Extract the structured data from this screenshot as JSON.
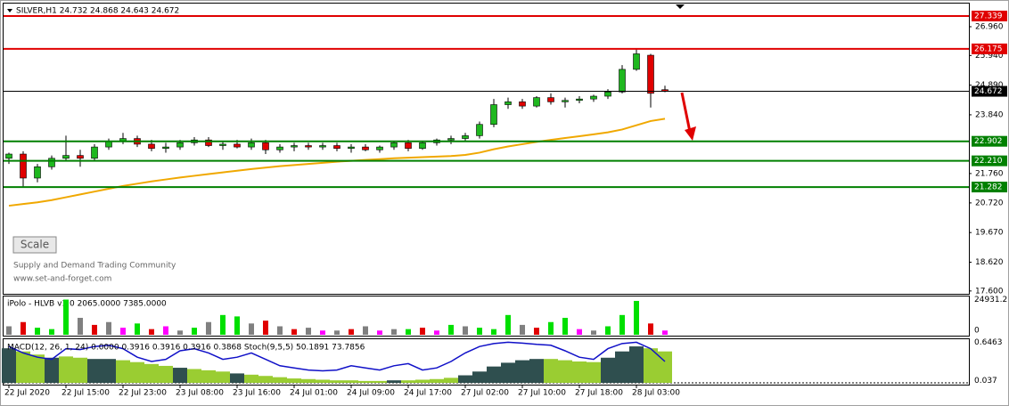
{
  "chart_data": {
    "type": "candlestick",
    "title": "SILVER,H1  24.732 24.868 24.643 24.672",
    "x": [
      "22 Jul 2020",
      null,
      null,
      null,
      "22 Jul 15:00",
      null,
      null,
      null,
      "22 Jul 23:00",
      null,
      null,
      null,
      "23 Jul 08:00",
      null,
      null,
      null,
      "23 Jul 16:00",
      null,
      null,
      null,
      "24 Jul 01:00",
      null,
      null,
      null,
      "24 Jul 09:00",
      null,
      null,
      null,
      "24 Jul 17:00",
      null,
      null,
      null,
      "27 Jul 02:00",
      null,
      null,
      null,
      "27 Jul 10:00",
      null,
      null,
      null,
      "27 Jul 18:00",
      null,
      null,
      null,
      "28 Jul 03:00",
      null,
      null
    ],
    "open": [
      22.3,
      22.45,
      21.6,
      22.0,
      22.3,
      22.4,
      22.3,
      22.7,
      22.9,
      23.0,
      22.8,
      22.65,
      22.7,
      22.85,
      22.95,
      22.75,
      22.8,
      22.7,
      22.85,
      22.6,
      22.7,
      22.75,
      22.7,
      22.75,
      22.65,
      22.7,
      22.6,
      22.7,
      22.85,
      22.65,
      22.85,
      22.95,
      23.0,
      23.1,
      23.5,
      24.2,
      24.3,
      24.15,
      24.45,
      24.3,
      24.35,
      24.4,
      24.5,
      24.65,
      25.45,
      25.95,
      24.73
    ],
    "high": [
      22.5,
      22.55,
      22.1,
      22.4,
      23.1,
      22.6,
      22.8,
      23.0,
      23.2,
      23.1,
      22.95,
      22.85,
      22.95,
      23.05,
      23.05,
      22.9,
      22.95,
      23.0,
      22.95,
      22.8,
      22.85,
      22.85,
      22.85,
      22.85,
      22.8,
      22.8,
      22.75,
      22.9,
      22.95,
      22.9,
      23.0,
      23.1,
      23.2,
      23.6,
      24.4,
      24.45,
      24.4,
      24.5,
      24.6,
      24.45,
      24.5,
      24.55,
      24.75,
      25.6,
      26.17,
      26.0,
      24.87
    ],
    "low": [
      22.1,
      21.3,
      21.45,
      21.9,
      22.2,
      22.0,
      22.2,
      22.6,
      22.8,
      22.7,
      22.55,
      22.5,
      22.6,
      22.75,
      22.7,
      22.6,
      22.65,
      22.6,
      22.45,
      22.5,
      22.55,
      22.6,
      22.6,
      22.55,
      22.5,
      22.55,
      22.5,
      22.6,
      22.55,
      22.6,
      22.75,
      22.8,
      22.9,
      23.0,
      23.4,
      24.05,
      24.05,
      24.1,
      24.2,
      24.1,
      24.25,
      24.3,
      24.4,
      24.6,
      25.4,
      24.1,
      24.64
    ],
    "close": [
      22.45,
      21.6,
      22.0,
      22.3,
      22.4,
      22.3,
      22.7,
      22.9,
      23.0,
      22.8,
      22.65,
      22.7,
      22.85,
      22.95,
      22.75,
      22.8,
      22.7,
      22.85,
      22.6,
      22.7,
      22.75,
      22.7,
      22.75,
      22.65,
      22.7,
      22.6,
      22.7,
      22.85,
      22.65,
      22.85,
      22.95,
      23.0,
      23.1,
      23.5,
      24.2,
      24.3,
      24.15,
      24.45,
      24.3,
      24.35,
      24.4,
      24.5,
      24.65,
      25.45,
      26.0,
      24.6,
      24.672
    ],
    "up_color": "#1fb81f",
    "down_color": "#e00000",
    "ma": {
      "color": "#f0a800",
      "values": [
        20.62,
        20.68,
        20.74,
        20.82,
        20.92,
        21.02,
        21.12,
        21.22,
        21.32,
        21.4,
        21.48,
        21.55,
        21.62,
        21.68,
        21.74,
        21.8,
        21.86,
        21.92,
        21.97,
        22.02,
        22.06,
        22.1,
        22.14,
        22.18,
        22.21,
        22.24,
        22.27,
        22.3,
        22.32,
        22.34,
        22.36,
        22.38,
        22.42,
        22.5,
        22.62,
        22.72,
        22.8,
        22.88,
        22.95,
        23.02,
        23.08,
        23.15,
        23.22,
        23.32,
        23.47,
        23.62,
        23.7
      ]
    },
    "ylim": [
      17.5,
      27.78
    ],
    "yticks": [
      {
        "value": 26.96,
        "label": "26.960"
      },
      {
        "value": 25.94,
        "label": "25.940"
      },
      {
        "value": 24.89,
        "label": "24.890"
      },
      {
        "value": 23.84,
        "label": "23.840"
      },
      {
        "value": 21.76,
        "label": "21.760"
      },
      {
        "value": 20.72,
        "label": "20.720"
      },
      {
        "value": 19.67,
        "label": "19.670"
      },
      {
        "value": 18.62,
        "label": "18.620"
      },
      {
        "value": 17.6,
        "label": "17.600"
      }
    ],
    "levels": [
      {
        "value": 27.339,
        "label": "27.339",
        "color": "#e00000"
      },
      {
        "value": 26.175,
        "label": "26.175",
        "color": "#e00000"
      },
      {
        "value": 24.672,
        "label": "24.672",
        "color": "#000000"
      },
      {
        "value": 22.902,
        "label": "22.902",
        "color": "#008000"
      },
      {
        "value": 22.21,
        "label": "22.210",
        "color": "#008000"
      },
      {
        "value": 21.282,
        "label": "21.282",
        "color": "#008000"
      }
    ],
    "button": "Scale",
    "annotations": [
      "Supply and Demand Trading Community",
      "www.set-and-forget.com"
    ],
    "volume": {
      "title": "iPolo - HLVB v1.0 2065.0000 7385.0000",
      "ylim": [
        0,
        26500
      ],
      "yticks": [
        24931.2,
        0
      ],
      "values": [
        6000,
        9000,
        5000,
        4000,
        24931.2,
        12000,
        7000,
        9000,
        5000,
        8000,
        4000,
        6000,
        3000,
        5000,
        9000,
        14000,
        13000,
        8000,
        10000,
        6000,
        4000,
        5000,
        3000,
        3000,
        4000,
        6000,
        3000,
        4000,
        4000,
        5000,
        3000,
        7000,
        6000,
        5000,
        4000,
        14000,
        7000,
        5000,
        9000,
        12000,
        4000,
        3000,
        6000,
        14000,
        24000,
        8000,
        3000
      ],
      "colors": [
        "#808080",
        "#e00000",
        "#00e000",
        "#00e000",
        "#00e000",
        "#808080",
        "#e00000",
        "#808080",
        "#ff00ff",
        "#00e000",
        "#e00000",
        "#ff00ff",
        "#808080",
        "#00e000",
        "#808080",
        "#00e000",
        "#00e000",
        "#808080",
        "#e00000",
        "#808080",
        "#e00000",
        "#808080",
        "#ff00ff",
        "#808080",
        "#e00000",
        "#808080",
        "#ff00ff",
        "#808080",
        "#00e000",
        "#e00000",
        "#ff00ff",
        "#00e000",
        "#808080",
        "#00e000",
        "#00e000",
        "#00e000",
        "#808080",
        "#e00000",
        "#00e000",
        "#00e000",
        "#ff00ff",
        "#808080",
        "#00e000",
        "#00e000",
        "#00e000",
        "#e00000",
        "#ff00ff"
      ]
    },
    "macd": {
      "title": "MACD(12, 26, 1, 24) 0.0000 0.3916 0.3916 0.3916 0.3868  Stoch(9,5,5) 50.1891 73.7856",
      "ylim": [
        0,
        0.68
      ],
      "yticks": [
        0.6463,
        0.037
      ],
      "values": [
        0.55,
        0.5,
        0.45,
        0.4,
        0.42,
        0.4,
        0.38,
        0.38,
        0.36,
        0.33,
        0.3,
        0.27,
        0.24,
        0.22,
        0.2,
        0.18,
        0.15,
        0.13,
        0.11,
        0.09,
        0.07,
        0.06,
        0.05,
        0.04,
        0.04,
        0.03,
        0.03,
        0.04,
        0.04,
        0.05,
        0.06,
        0.08,
        0.12,
        0.18,
        0.26,
        0.32,
        0.36,
        0.38,
        0.38,
        0.36,
        0.34,
        0.33,
        0.4,
        0.5,
        0.58,
        0.55,
        0.5
      ],
      "colors": [
        "#2f4f4f",
        "#9acd32",
        "#9acd32",
        "#2f4f4f",
        "#9acd32",
        "#9acd32",
        "#2f4f4f",
        "#2f4f4f",
        "#9acd32",
        "#9acd32",
        "#9acd32",
        "#9acd32",
        "#2f4f4f",
        "#9acd32",
        "#9acd32",
        "#9acd32",
        "#2f4f4f",
        "#9acd32",
        "#9acd32",
        "#9acd32",
        "#9acd32",
        "#9acd32",
        "#9acd32",
        "#9acd32",
        "#9acd32",
        "#9acd32",
        "#9acd32",
        "#2f4f4f",
        "#9acd32",
        "#9acd32",
        "#9acd32",
        "#9acd32",
        "#2f4f4f",
        "#2f4f4f",
        "#2f4f4f",
        "#2f4f4f",
        "#2f4f4f",
        "#2f4f4f",
        "#9acd32",
        "#9acd32",
        "#9acd32",
        "#9acd32",
        "#2f4f4f",
        "#2f4f4f",
        "#2f4f4f",
        "#9acd32",
        "#9acd32"
      ],
      "stoch": {
        "color": "#1010c8",
        "ylim": [
          0,
          100
        ],
        "values": [
          85,
          70,
          60,
          55,
          80,
          78,
          85,
          88,
          80,
          60,
          50,
          55,
          75,
          80,
          70,
          55,
          60,
          70,
          55,
          40,
          35,
          30,
          28,
          30,
          40,
          35,
          30,
          40,
          45,
          30,
          35,
          50,
          70,
          85,
          92,
          95,
          93,
          90,
          88,
          75,
          60,
          55,
          80,
          92,
          95,
          80,
          50
        ]
      }
    }
  }
}
